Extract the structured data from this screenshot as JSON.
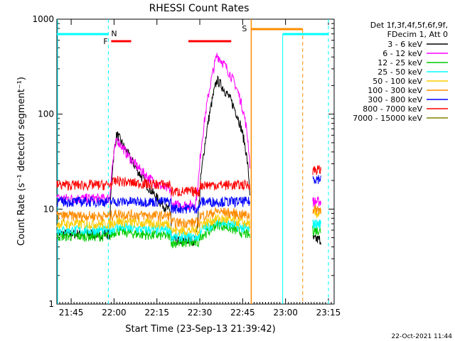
{
  "chart_data": {
    "type": "line",
    "title": "RHESSI Count Rates",
    "xlabel": "Start Time (23-Sep-13 21:39:42)",
    "ylabel": "Count Rate (s⁻¹ detector segment⁻¹)",
    "yscale": "log",
    "ylim": [
      1,
      1000
    ],
    "xlim_minutes_after_2140": [
      0,
      97
    ],
    "y_tick_labels": [
      "1",
      "10",
      "100",
      "1000"
    ],
    "x_tick_labels": [
      "21:45",
      "22:00",
      "22:15",
      "22:30",
      "22:45",
      "23:00",
      "23:15"
    ],
    "x_tick_minutes": [
      5,
      20,
      35,
      50,
      65,
      80,
      95
    ],
    "legend_position": "right",
    "legend_header": [
      "Det 1f,3f,4f,5f,6f,9f,",
      "FDecim 1, Att 0"
    ],
    "series": [
      {
        "name": "3 - 6 keV",
        "color": "#000000",
        "base": 5.5,
        "peak1": 62,
        "peak2": 230,
        "end": 4.8
      },
      {
        "name": "6 - 12 keV",
        "color": "#ff00ff",
        "base": 13,
        "peak1": 55,
        "peak2": 420,
        "end": 12
      },
      {
        "name": "12 - 25 keV",
        "color": "#00cc00",
        "base": 5.2,
        "peak1": 6,
        "peak2": 7,
        "end": 6
      },
      {
        "name": "25 - 50 keV",
        "color": "#00ffff",
        "base": 6,
        "peak1": 6.5,
        "peak2": 7.5,
        "end": 7
      },
      {
        "name": "50 - 100 keV",
        "color": "#ffcc00",
        "base": 7,
        "peak1": 7.5,
        "peak2": 8,
        "end": 9
      },
      {
        "name": "100 - 300 keV",
        "color": "#ff8c00",
        "base": 8.5,
        "peak1": 9,
        "peak2": 9.5,
        "end": 10
      },
      {
        "name": "300 - 800 keV",
        "color": "#0000ff",
        "base": 12,
        "peak1": 12,
        "peak2": 10,
        "end": 21
      },
      {
        "name": "800 - 7000 keV",
        "color": "#ff0000",
        "base": 18,
        "peak1": 20,
        "peak2": 17,
        "end": 26
      },
      {
        "name": "7000 - 15000 keV",
        "color": "#808000",
        "base": 0,
        "peak1": 0,
        "peak2": 0,
        "end": 0
      }
    ],
    "markers": {
      "N": {
        "label": "N",
        "color": "#00ffff",
        "intervals": [
          [
            0,
            18
          ],
          [
            79,
            95
          ]
        ],
        "dashed_at": [
          18,
          95
        ]
      },
      "F": {
        "label": "F",
        "color": "#ff0000",
        "intervals": [
          [
            19,
            26
          ],
          [
            46,
            61
          ]
        ]
      },
      "S": {
        "label": "S",
        "color": "#ff8c00",
        "intervals": [
          [
            68,
            86
          ]
        ],
        "solid_at": 68,
        "dashed_at": 86
      }
    }
  },
  "footer": {
    "timestamp": "22-Oct-2021 11:44"
  }
}
